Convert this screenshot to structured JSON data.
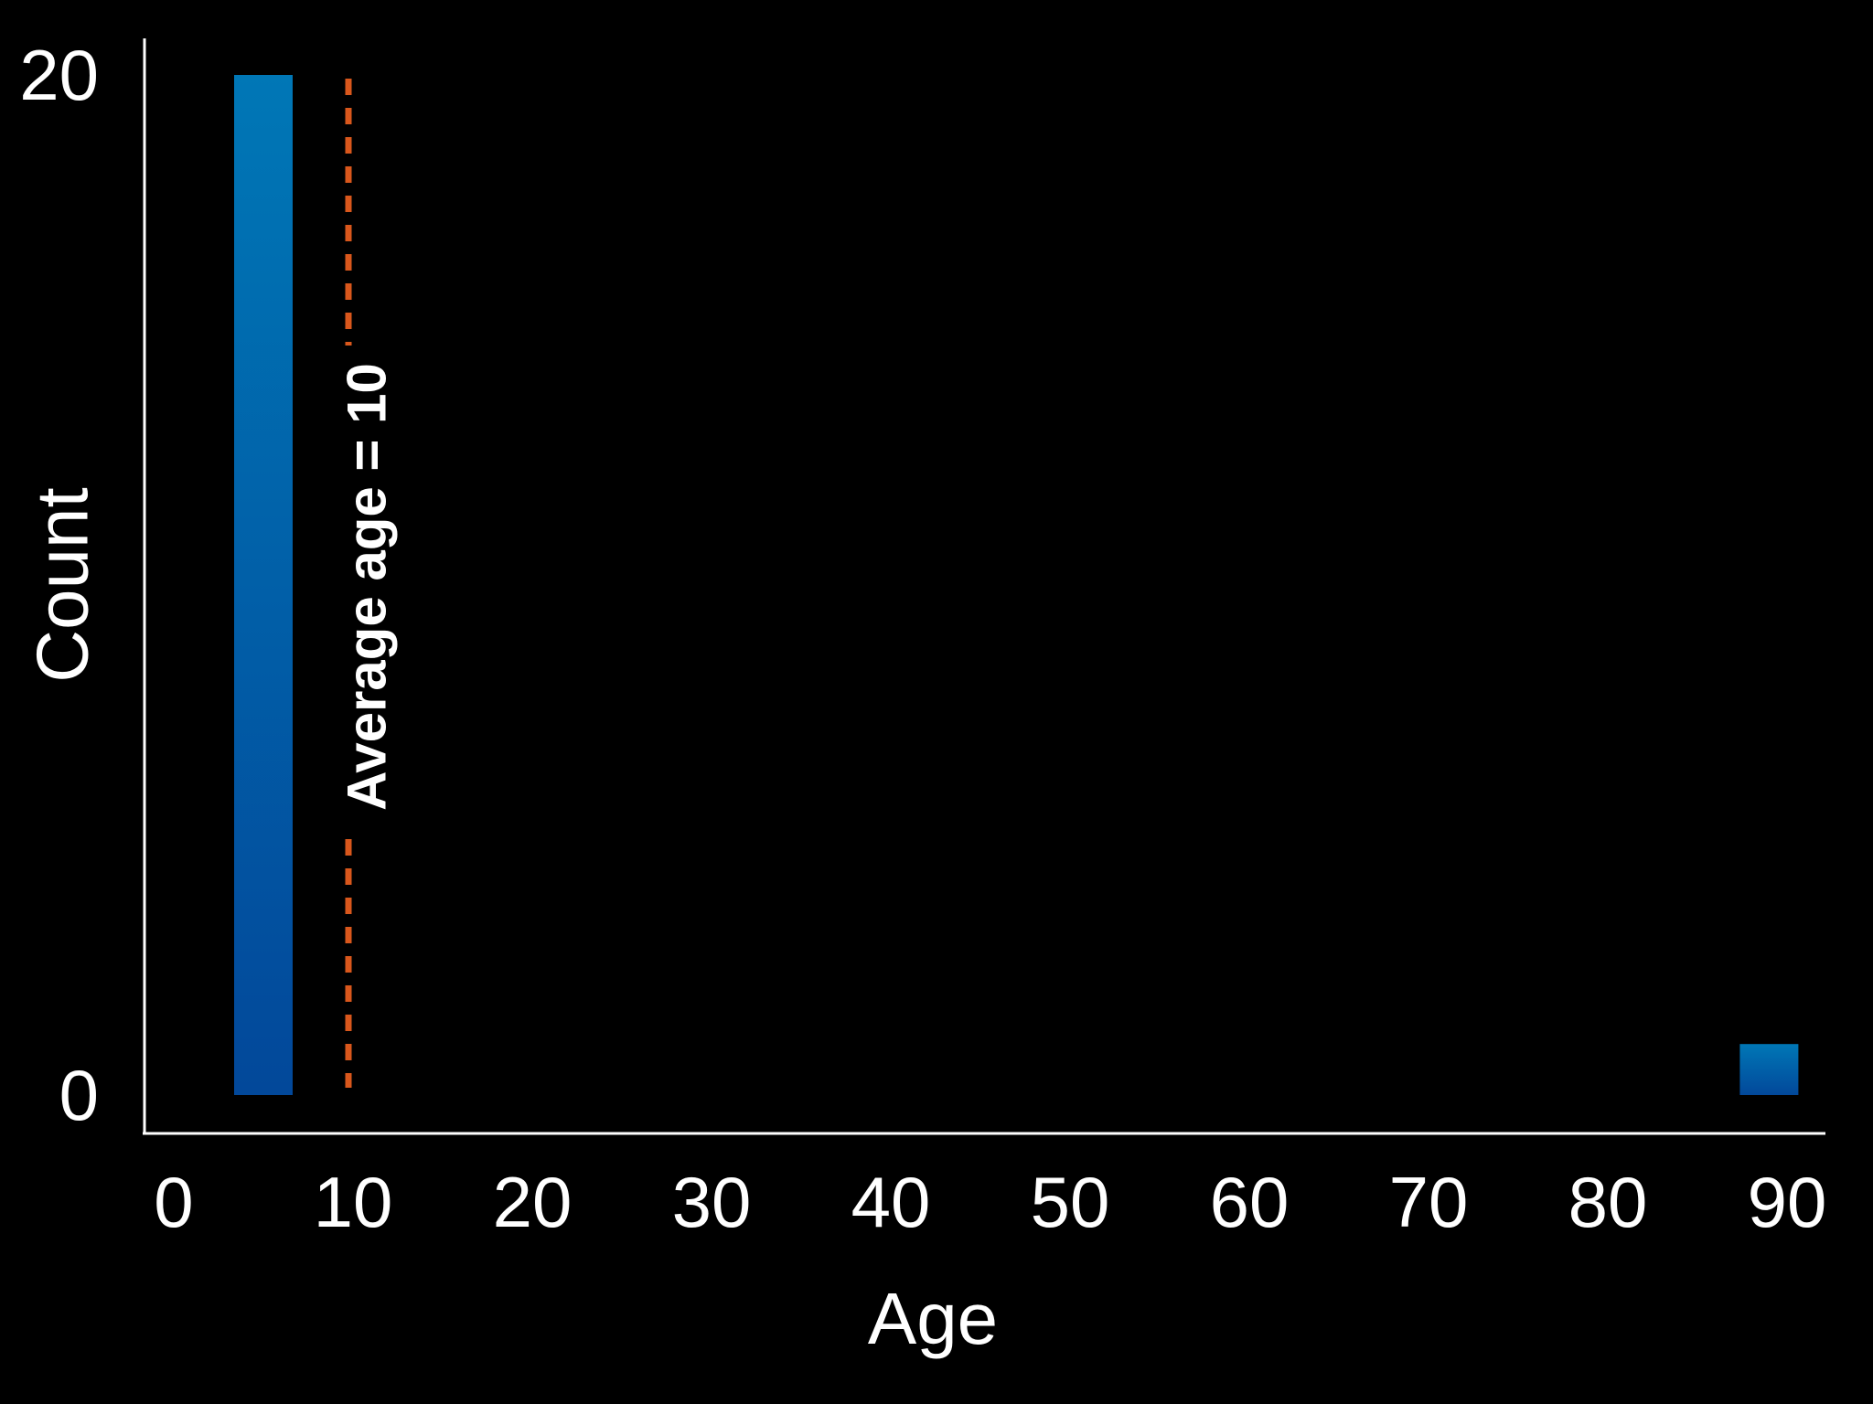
{
  "chart_data": {
    "type": "bar",
    "title": "",
    "xlabel": "Age",
    "ylabel": "Count",
    "xlim": [
      0,
      92
    ],
    "ylim": [
      0,
      20
    ],
    "x_ticks": [
      "0",
      "10",
      "20",
      "30",
      "40",
      "50",
      "60",
      "70",
      "80",
      "90"
    ],
    "y_ticks": [
      "0",
      "20"
    ],
    "grid": false,
    "legend": "none",
    "bars": [
      {
        "x": 5,
        "value": 20
      },
      {
        "x": 89,
        "value": 1
      }
    ],
    "annotation": {
      "text": "Average age = 10",
      "x": 10
    },
    "colors": {
      "bar_top": "#0077b6",
      "bar_bottom": "#02489a",
      "mean_line": "#d9571c",
      "axis": "#ffffff",
      "background": "#000000"
    }
  }
}
